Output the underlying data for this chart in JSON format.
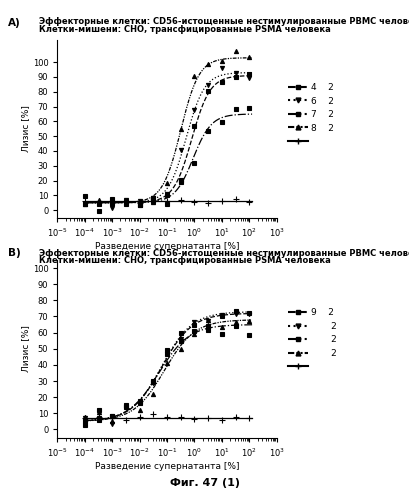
{
  "title_A_line1": "Эффекторные клетки: CD56-истощенные нестимулированные РВМС человека",
  "title_A_line2": "Клетки-мишени: СНО, трансфицированные PSMA человека",
  "title_B_line1": "Эффекторные клетки: CD56-истощенные нестимулированные РВМС человека",
  "title_B_line2": "Клетки-мишени: СНО, трансфицированные PSMA человека",
  "xlabel": "Разведение супернатанта [%]",
  "ylabel": "Лизис [%]",
  "fig_label": "Фиг. 47 (1)",
  "panel_A_label": "A)",
  "panel_B_label": "B)",
  "background_color": "#ffffff"
}
